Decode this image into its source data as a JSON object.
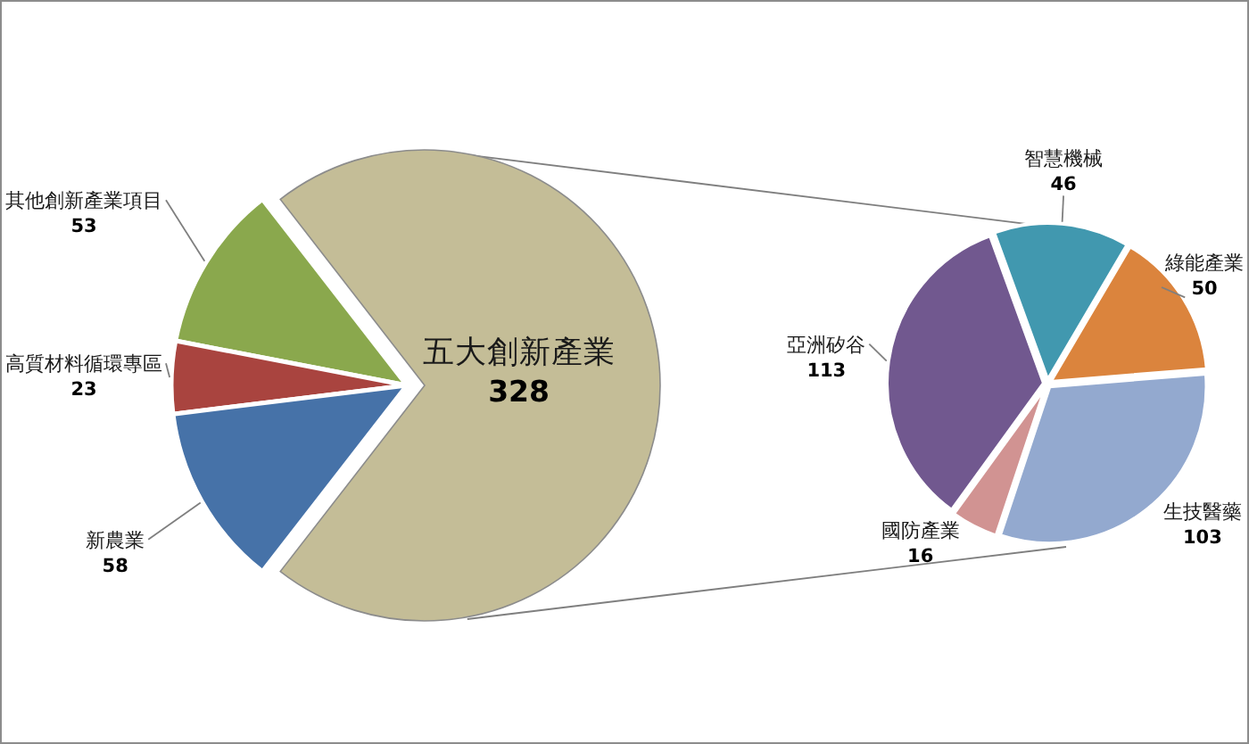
{
  "chart_data": [
    {
      "type": "pie",
      "categories": [
        "五大創新產業",
        "其他創新產業項目",
        "高質材料循環專區",
        "新農業"
      ],
      "values": [
        328,
        53,
        23,
        58
      ],
      "colors": [
        "#c4bd97",
        "#8aa84d",
        "#a9443f",
        "#4672a8"
      ],
      "data_labels": true
    },
    {
      "type": "pie",
      "categories": [
        "智慧機械",
        "綠能產業",
        "生技醫藥",
        "國防產業",
        "亞洲矽谷"
      ],
      "values": [
        46,
        50,
        103,
        16,
        113
      ],
      "colors": [
        "#4198af",
        "#db843d",
        "#93a9cf",
        "#d19392",
        "#71588f"
      ],
      "data_labels": true
    }
  ]
}
